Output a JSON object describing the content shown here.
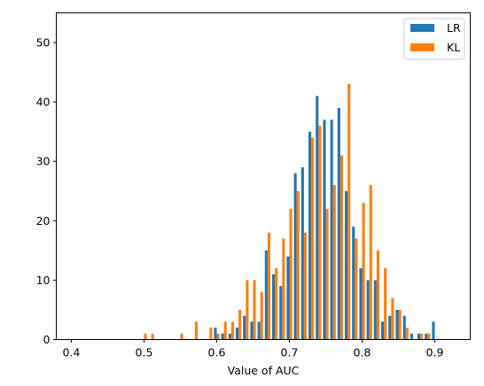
{
  "chart_data": {
    "type": "bar",
    "title": "",
    "xlabel": "Value of AUC",
    "ylabel": "",
    "xlim": [
      0.35,
      0.935
    ],
    "ylim": [
      0,
      55
    ],
    "xticks": [
      0.4,
      0.5,
      0.6,
      0.7,
      0.8,
      0.9
    ],
    "xtick_labels": [
      "0.4",
      "0.5",
      "0.6",
      "0.7",
      "0.8",
      "0.9"
    ],
    "yticks": [
      0,
      10,
      20,
      30,
      40,
      50
    ],
    "ytick_labels": [
      "0",
      "10",
      "20",
      "30",
      "40",
      "50"
    ],
    "grid": false,
    "legend_position": "top-right",
    "bin_start": 0.4,
    "bin_width": 0.01,
    "series": [
      {
        "name": "LR",
        "color": "#1f77b4",
        "values": [
          0,
          0,
          0,
          0,
          0,
          0,
          0,
          0,
          0,
          0,
          0,
          0,
          0,
          0,
          0,
          0,
          0,
          0,
          0,
          0,
          2,
          1,
          1,
          2,
          4,
          3,
          3,
          15,
          11,
          9,
          14,
          28,
          29,
          35,
          41,
          37,
          37,
          39,
          25,
          19,
          12,
          10,
          10,
          3,
          4,
          5,
          4,
          1,
          1,
          1,
          3
        ]
      },
      {
        "name": "KL",
        "color": "#ff7f0e",
        "values": [
          0,
          0,
          0,
          0,
          0,
          0,
          0,
          0,
          0,
          0,
          1,
          1,
          0,
          0,
          0,
          1,
          0,
          3,
          0,
          2,
          1,
          3,
          3,
          5,
          10,
          10,
          8,
          18,
          12,
          17,
          22,
          25,
          18,
          34,
          36,
          22,
          26,
          31,
          43,
          17,
          23,
          26,
          15,
          12,
          7,
          5,
          2,
          0,
          1,
          1,
          0
        ]
      }
    ]
  }
}
